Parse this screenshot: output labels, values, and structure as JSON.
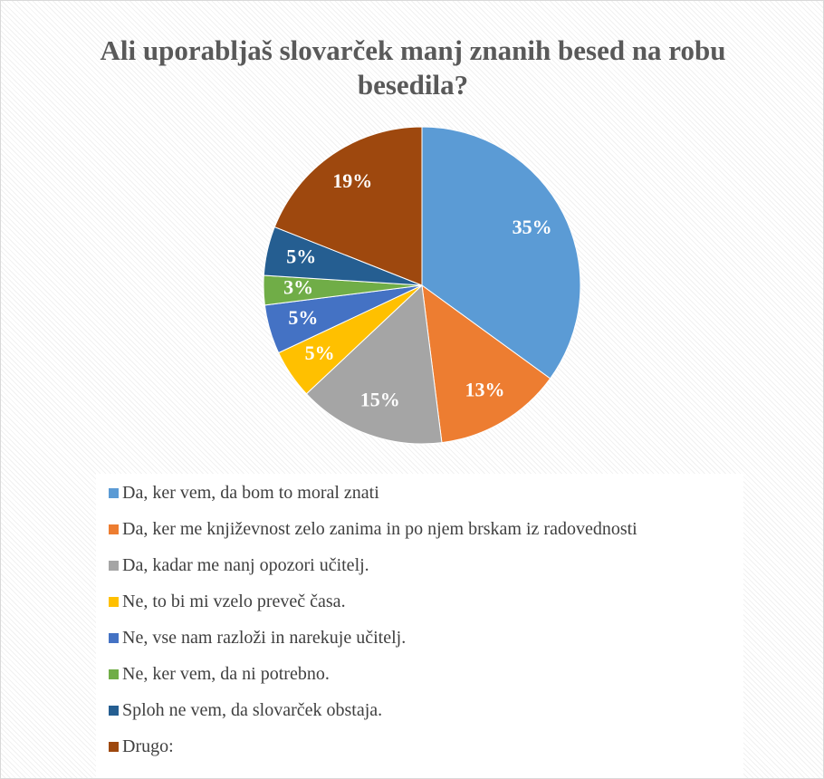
{
  "chart_data": {
    "type": "pie",
    "title": "Ali uporabljaš slovarček manj znanih besed na robu besedila?",
    "categories": [
      "Da, ker vem, da bom to moral znati",
      "Da, ker me književnost zelo zanima in po njem brskam iz radovednosti",
      "Da, kadar me nanj opozori učitelj.",
      "Ne, to bi mi vzelo preveč časa.",
      "Ne, vse nam razloži in narekuje učitelj.",
      "Ne, ker vem, da ni potrebno.",
      "Sploh ne vem, da slovarček obstaja.",
      "Drugo:"
    ],
    "values": [
      35,
      13,
      15,
      5,
      5,
      3,
      5,
      19
    ],
    "value_labels": [
      "35%",
      "13%",
      "15%",
      "5%",
      "5%",
      "3%",
      "5%",
      "19%"
    ],
    "colors": [
      "#5b9bd5",
      "#ed7d31",
      "#a5a5a5",
      "#ffc000",
      "#4472c4",
      "#70ad47",
      "#255e91",
      "#9e480e"
    ],
    "legend": "bottom"
  }
}
